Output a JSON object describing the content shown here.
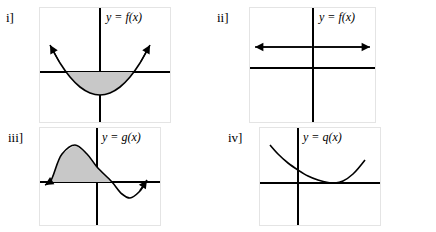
{
  "chart_data": [
    {
      "type": "line",
      "title": "i]",
      "label": "y = f(x)",
      "xlim": [
        -6,
        7
      ],
      "ylim": [
        -5,
        6.4
      ],
      "xticks": [],
      "yticks": [],
      "tick_labels": false,
      "grid": false,
      "series": [
        {
          "type": "area",
          "color": "#c8c8c8",
          "x": [
            -3.4,
            -3,
            -2,
            -1,
            0,
            1,
            2,
            3,
            3.4
          ],
          "values": [
            0,
            -0.5,
            -1.5,
            -2.1,
            -2.3,
            -2.1,
            -1.5,
            -0.5,
            0
          ]
        },
        {
          "type": "line",
          "line_style": "arrows",
          "color": "#000000",
          "x": [
            -5,
            -4,
            -3,
            -2,
            -1,
            0,
            1,
            2,
            3,
            4,
            5
          ],
          "values": [
            2.7,
            0.9,
            -0.5,
            -1.5,
            -2.1,
            -2.3,
            -2.1,
            -1.5,
            -0.5,
            0.9,
            2.7
          ]
        }
      ]
    },
    {
      "type": "line",
      "title": "ii]",
      "label": "y = f(x)",
      "xlim": [
        -6.3,
        6.2
      ],
      "ylim": [
        -5.4,
        6
      ],
      "xticks": [],
      "yticks": [],
      "tick_labels": false,
      "grid": false,
      "series": [
        {
          "type": "line",
          "line_style": "arrows",
          "color": "#000000",
          "x": [
            -5.8,
            0,
            5.7
          ],
          "values": [
            2.1,
            2.1,
            2.1
          ]
        }
      ]
    },
    {
      "type": "line",
      "title": "iii]",
      "label": "y = g(x)",
      "xlim": [
        -5.7,
        6.3
      ],
      "ylim": [
        -4.3,
        5.4
      ],
      "xticks": [],
      "yticks": [],
      "tick_labels": false,
      "grid": false,
      "series": [
        {
          "type": "area",
          "color": "#c8c8c8",
          "x": [
            -4.7,
            -3.5,
            -2.2,
            -1,
            0,
            1.5
          ],
          "values": [
            0,
            2.8,
            3.7,
            2.8,
            1.5,
            0
          ]
        },
        {
          "type": "line",
          "line_style": "arrows",
          "color": "#000000",
          "x": [
            -5.2,
            -4.7,
            -3.5,
            -2.2,
            -1,
            0,
            1.5,
            2.5,
            3.3,
            4.2,
            5
          ],
          "values": [
            -0.3,
            0,
            2.8,
            3.7,
            2.8,
            1.5,
            0,
            -1.2,
            -1.6,
            -1,
            0.2
          ]
        }
      ]
    },
    {
      "type": "line",
      "title": "iv]",
      "label": "y = q(x)",
      "xlim": [
        -3.8,
        8.2
      ],
      "ylim": [
        -4.2,
        5.5
      ],
      "xticks": [],
      "yticks": [],
      "tick_labels": false,
      "grid": false,
      "series": [
        {
          "type": "line",
          "line_style": "solid",
          "color": "#000000",
          "x": [
            -2.8,
            -2,
            -1,
            0,
            1,
            2,
            3,
            3.7,
            4.5,
            5.5,
            6.7
          ],
          "values": [
            3.8,
            2.9,
            2.0,
            1.3,
            0.7,
            0.3,
            0.05,
            0,
            0.2,
            0.9,
            2.3
          ]
        }
      ]
    }
  ]
}
